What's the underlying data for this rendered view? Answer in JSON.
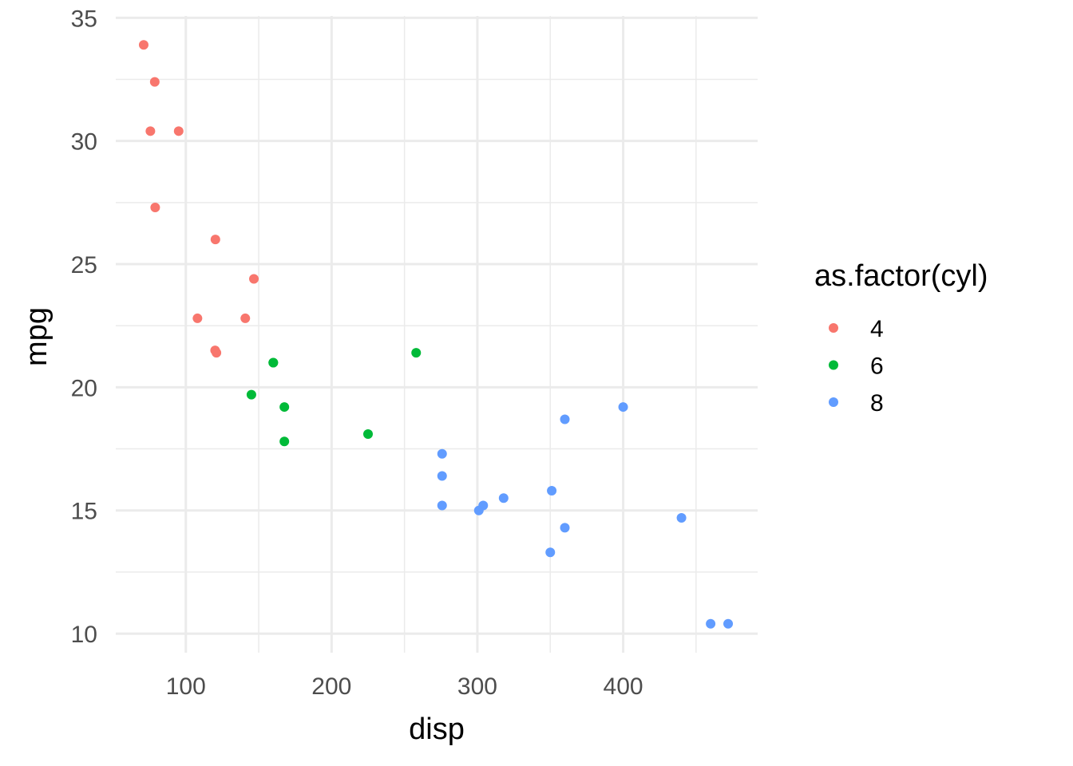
{
  "chart_data": {
    "type": "scatter",
    "title": "",
    "xlabel": "disp",
    "ylabel": "mpg",
    "xlim": [
      51.95,
      492.25
    ],
    "ylim": [
      9.225,
      35.075
    ],
    "x_ticks": [
      100,
      200,
      300,
      400
    ],
    "x_tick_labels": [
      "100",
      "200",
      "300",
      "400"
    ],
    "x_minor_ticks": [
      150,
      250,
      350,
      450
    ],
    "y_ticks": [
      10,
      15,
      20,
      25,
      30,
      35
    ],
    "y_tick_labels": [
      "10",
      "15",
      "20",
      "25",
      "30",
      "35"
    ],
    "y_minor_ticks": [
      12.5,
      17.5,
      22.5,
      27.5,
      32.5
    ],
    "grid": true,
    "legend": {
      "title": "as.factor(cyl)",
      "position": "right"
    },
    "series": [
      {
        "name": "4",
        "color": "#F8766D",
        "points": [
          [
            108,
            22.8
          ],
          [
            146.7,
            24.4
          ],
          [
            140.8,
            22.8
          ],
          [
            78.7,
            32.4
          ],
          [
            75.7,
            30.4
          ],
          [
            71.1,
            33.9
          ],
          [
            120.1,
            21.5
          ],
          [
            79,
            27.3
          ],
          [
            120.3,
            26
          ],
          [
            95.1,
            30.4
          ],
          [
            121,
            21.4
          ]
        ]
      },
      {
        "name": "6",
        "color": "#00BA38",
        "points": [
          [
            160,
            21
          ],
          [
            258,
            21.4
          ],
          [
            225,
            18.1
          ],
          [
            167.6,
            19.2
          ],
          [
            167.6,
            17.8
          ],
          [
            145,
            19.7
          ],
          [
            160,
            21
          ]
        ]
      },
      {
        "name": "8",
        "color": "#619CFF",
        "points": [
          [
            360,
            18.7
          ],
          [
            360,
            14.3
          ],
          [
            275.8,
            16.4
          ],
          [
            275.8,
            17.3
          ],
          [
            275.8,
            15.2
          ],
          [
            472,
            10.4
          ],
          [
            460,
            10.4
          ],
          [
            440,
            14.7
          ],
          [
            318,
            15.5
          ],
          [
            304,
            15.2
          ],
          [
            350,
            13.3
          ],
          [
            400,
            19.2
          ],
          [
            351,
            15.8
          ],
          [
            301,
            15
          ]
        ]
      }
    ]
  }
}
